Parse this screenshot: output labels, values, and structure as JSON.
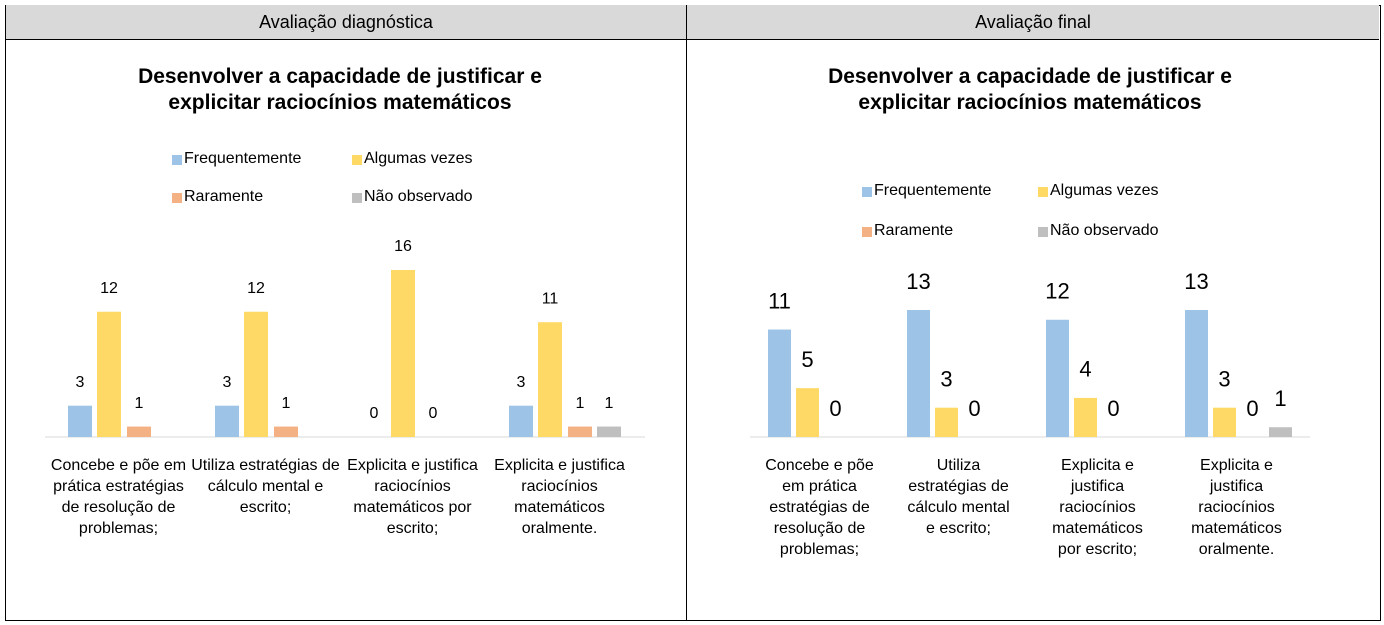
{
  "table": {
    "headers": [
      "Avaliação diagnóstica",
      "Avaliação final"
    ]
  },
  "chart_data": [
    {
      "type": "bar",
      "title": "Desenvolver a capacidade de justificar e explicitar raciocínios matemáticos",
      "categories": [
        "Concebe e põe em prática estratégias de resolução de problemas;",
        "Utiliza estratégias de cálculo mental e escrito;",
        "Explicita e justifica raciocínios matemáticos por escrito;",
        "Explicita e justifica raciocínios matemáticos oralmente."
      ],
      "series": [
        {
          "name": "Frequentemente",
          "color": "#9dc3e6",
          "values": [
            3,
            3,
            0,
            3
          ]
        },
        {
          "name": "Algumas vezes",
          "color": "#ffd966",
          "values": [
            12,
            12,
            16,
            11
          ]
        },
        {
          "name": "Raramente",
          "color": "#f4b183",
          "values": [
            1,
            1,
            0,
            1
          ]
        },
        {
          "name": "Não observado",
          "color": "#bfbfbf",
          "values": [
            null,
            null,
            null,
            1
          ]
        }
      ],
      "legend": "top"
    },
    {
      "type": "bar",
      "title": "Desenvolver a capacidade de justificar e explicitar raciocínios matemáticos",
      "categories": [
        "Concebe e põe em prática estratégias de resolução de problemas;",
        "Utiliza estratégias de cálculo mental e escrito;",
        "Explicita e justifica raciocínios matemáticos por escrito;",
        "Explicita e justifica raciocínios matemáticos oralmente."
      ],
      "series": [
        {
          "name": "Frequentemente",
          "color": "#9dc3e6",
          "values": [
            11,
            13,
            12,
            13
          ]
        },
        {
          "name": "Algumas vezes",
          "color": "#ffd966",
          "values": [
            5,
            3,
            4,
            3
          ]
        },
        {
          "name": "Raramente",
          "color": "#f4b183",
          "values": [
            0,
            0,
            0,
            0
          ]
        },
        {
          "name": "Não observado",
          "color": "#bfbfbf",
          "values": [
            null,
            null,
            null,
            1
          ]
        }
      ],
      "legend": "top"
    }
  ]
}
